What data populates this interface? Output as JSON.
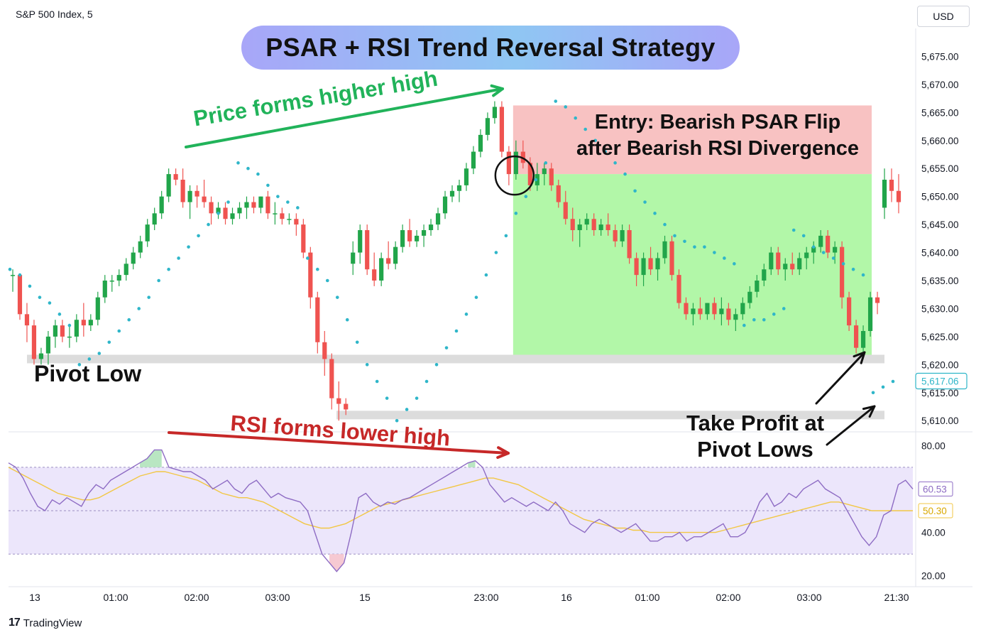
{
  "header": {
    "symbol": "S&P 500 Index, 5",
    "currency": "USD"
  },
  "title": "PSAR + RSI Trend Reversal Strategy",
  "annotations": {
    "price_higher_high": "Price forms higher high",
    "rsi_lower_high": "RSI forms lower high",
    "entry": "Entry: Bearish PSAR Flip after Bearish RSI Divergence",
    "pivot_low": "Pivot Low",
    "take_profit": "Take Profit at Pivot Lows"
  },
  "price_axis": {
    "labels": [
      "5,610.00",
      "5,615.00",
      "5,620.00",
      "5,625.00",
      "5,630.00",
      "5,635.00",
      "5,640.00",
      "5,645.00",
      "5,650.00",
      "5,655.00",
      "5,660.00",
      "5,665.00",
      "5,670.00",
      "5,675.00"
    ],
    "last_price": "5,617.06"
  },
  "rsi_axis": {
    "labels": [
      "80.00",
      "60.00",
      "40.00",
      "20.00"
    ],
    "rsi_value": "60.53",
    "ma_value": "50.30"
  },
  "time_axis": [
    "13",
    "01:00",
    "02:00",
    "03:00",
    "15",
    "23:00",
    "16",
    "01:00",
    "02:00",
    "03:00",
    "21:30"
  ],
  "footer": {
    "brand": "TradingView"
  },
  "colors": {
    "up": "#26a69a",
    "up_candle": "#21a54a",
    "down": "#ef5350",
    "psar": "#2fb6c9",
    "rsi": "#8e6cc4",
    "rsi_ma": "#f2c744",
    "stop_zone": "#f8c2c2",
    "profit_zone": "#b2f7a8",
    "pivot_line": "#dcdcdc"
  },
  "chart_data": [
    {
      "type": "candlestick",
      "title": "S&P 500 Index, 5",
      "ylim": [
        5608,
        5680
      ],
      "y_ticks": [
        5610,
        5615,
        5620,
        5625,
        5630,
        5635,
        5640,
        5645,
        5650,
        5655,
        5660,
        5665,
        5670,
        5675
      ],
      "last_price": 5617.06,
      "candles": [
        [
          5636,
          5637,
          5633,
          5636
        ],
        [
          5636,
          5636,
          5628,
          5629
        ],
        [
          5629,
          5631,
          5624,
          5627
        ],
        [
          5627,
          5628,
          5620,
          5621
        ],
        [
          5621,
          5623,
          5620,
          5622
        ],
        [
          5622,
          5626,
          5620,
          5625
        ],
        [
          5625,
          5628,
          5623,
          5627
        ],
        [
          5627,
          5628,
          5624,
          5625
        ],
        [
          5625,
          5627,
          5623,
          5625
        ],
        [
          5625,
          5629,
          5624,
          5628
        ],
        [
          5628,
          5631,
          5625,
          5627
        ],
        [
          5627,
          5629,
          5626,
          5628
        ],
        [
          5628,
          5633,
          5627,
          5632
        ],
        [
          5632,
          5636,
          5631,
          5635
        ],
        [
          5635,
          5636,
          5633,
          5635
        ],
        [
          5635,
          5637,
          5634,
          5636
        ],
        [
          5636,
          5639,
          5635,
          5638
        ],
        [
          5638,
          5641,
          5637,
          5640
        ],
        [
          5640,
          5643,
          5639,
          5642
        ],
        [
          5642,
          5646,
          5641,
          5645
        ],
        [
          5645,
          5648,
          5644,
          5647
        ],
        [
          5647,
          5651,
          5646,
          5650
        ],
        [
          5650,
          5655,
          5649,
          5654
        ],
        [
          5654,
          5655,
          5652,
          5653
        ],
        [
          5653,
          5655,
          5648,
          5649
        ],
        [
          5649,
          5652,
          5646,
          5651
        ],
        [
          5651,
          5652,
          5648,
          5650
        ],
        [
          5650,
          5653,
          5648,
          5649
        ],
        [
          5649,
          5650,
          5645,
          5647
        ],
        [
          5647,
          5649,
          5646,
          5648
        ],
        [
          5648,
          5649,
          5645,
          5646
        ],
        [
          5646,
          5648,
          5645,
          5647
        ],
        [
          5647,
          5649,
          5646,
          5648
        ],
        [
          5648,
          5650,
          5646,
          5649
        ],
        [
          5649,
          5650,
          5647,
          5648
        ],
        [
          5648,
          5650,
          5647,
          5650
        ],
        [
          5650,
          5651,
          5646,
          5647
        ],
        [
          5647,
          5649,
          5645,
          5647
        ],
        [
          5647,
          5648,
          5645,
          5646
        ],
        [
          5646,
          5647,
          5645,
          5646
        ],
        [
          5646,
          5647,
          5643,
          5645
        ],
        [
          5645,
          5646,
          5639,
          5640
        ],
        [
          5640,
          5641,
          5630,
          5632
        ],
        [
          5632,
          5633,
          5622,
          5624
        ],
        [
          5624,
          5626,
          5618,
          5621
        ],
        [
          5621,
          5622,
          5612,
          5614
        ],
        [
          5614,
          5617,
          5610,
          5613
        ],
        [
          5613,
          5614,
          5611,
          5612
        ],
        [
          5638,
          5642,
          5636,
          5640
        ],
        [
          5640,
          5645,
          5638,
          5644
        ],
        [
          5644,
          5645,
          5636,
          5637
        ],
        [
          5637,
          5640,
          5634,
          5635
        ],
        [
          5635,
          5640,
          5634,
          5639
        ],
        [
          5639,
          5642,
          5637,
          5638
        ],
        [
          5638,
          5642,
          5637,
          5641
        ],
        [
          5641,
          5645,
          5640,
          5644
        ],
        [
          5644,
          5646,
          5641,
          5642
        ],
        [
          5642,
          5644,
          5641,
          5643
        ],
        [
          5643,
          5645,
          5641,
          5644
        ],
        [
          5644,
          5646,
          5643,
          5645
        ],
        [
          5645,
          5648,
          5644,
          5647
        ],
        [
          5647,
          5651,
          5646,
          5650
        ],
        [
          5650,
          5652,
          5649,
          5651
        ],
        [
          5651,
          5653,
          5649,
          5652
        ],
        [
          5652,
          5656,
          5651,
          5655
        ],
        [
          5655,
          5659,
          5654,
          5658
        ],
        [
          5658,
          5662,
          5657,
          5661
        ],
        [
          5661,
          5665,
          5660,
          5664
        ],
        [
          5664,
          5667,
          5663,
          5666
        ],
        [
          5666,
          5667,
          5657,
          5658
        ],
        [
          5658,
          5659,
          5652,
          5654
        ],
        [
          5654,
          5660,
          5653,
          5658
        ],
        [
          5658,
          5660,
          5655,
          5656
        ],
        [
          5656,
          5657,
          5651,
          5652
        ],
        [
          5652,
          5656,
          5651,
          5654
        ],
        [
          5654,
          5656,
          5652,
          5655
        ],
        [
          5655,
          5656,
          5651,
          5652
        ],
        [
          5652,
          5653,
          5648,
          5649
        ],
        [
          5649,
          5651,
          5645,
          5646
        ],
        [
          5646,
          5648,
          5642,
          5644
        ],
        [
          5644,
          5646,
          5641,
          5645
        ],
        [
          5645,
          5647,
          5644,
          5646
        ],
        [
          5646,
          5647,
          5643,
          5644
        ],
        [
          5644,
          5646,
          5643,
          5645
        ],
        [
          5645,
          5647,
          5643,
          5644
        ],
        [
          5644,
          5645,
          5641,
          5642
        ],
        [
          5642,
          5645,
          5641,
          5644
        ],
        [
          5644,
          5645,
          5638,
          5639
        ],
        [
          5639,
          5640,
          5634,
          5636
        ],
        [
          5636,
          5640,
          5634,
          5639
        ],
        [
          5639,
          5641,
          5636,
          5637
        ],
        [
          5637,
          5640,
          5635,
          5639
        ],
        [
          5639,
          5643,
          5638,
          5642
        ],
        [
          5642,
          5643,
          5635,
          5636
        ],
        [
          5636,
          5637,
          5630,
          5631
        ],
        [
          5631,
          5632,
          5628,
          5629
        ],
        [
          5629,
          5631,
          5627,
          5630
        ],
        [
          5630,
          5632,
          5628,
          5629
        ],
        [
          5629,
          5631,
          5628,
          5631
        ],
        [
          5631,
          5632,
          5628,
          5629
        ],
        [
          5629,
          5632,
          5627,
          5630
        ],
        [
          5630,
          5631,
          5627,
          5628
        ],
        [
          5628,
          5630,
          5626,
          5629
        ],
        [
          5629,
          5632,
          5628,
          5631
        ],
        [
          5631,
          5634,
          5630,
          5633
        ],
        [
          5633,
          5636,
          5632,
          5635
        ],
        [
          5635,
          5638,
          5634,
          5637
        ],
        [
          5637,
          5641,
          5636,
          5640
        ],
        [
          5640,
          5641,
          5636,
          5637
        ],
        [
          5637,
          5639,
          5635,
          5638
        ],
        [
          5638,
          5640,
          5636,
          5637
        ],
        [
          5637,
          5640,
          5636,
          5639
        ],
        [
          5639,
          5641,
          5637,
          5640
        ],
        [
          5640,
          5642,
          5638,
          5641
        ],
        [
          5641,
          5644,
          5640,
          5643
        ],
        [
          5643,
          5644,
          5639,
          5640
        ],
        [
          5640,
          5642,
          5638,
          5641
        ],
        [
          5641,
          5642,
          5630,
          5632
        ],
        [
          5632,
          5633,
          5626,
          5627
        ],
        [
          5627,
          5628,
          5622,
          5623
        ],
        [
          5623,
          5627,
          5621,
          5626
        ],
        [
          5626,
          5633,
          5625,
          5632
        ],
        [
          5632,
          5633,
          5629,
          5631
        ],
        [
          5648,
          5655,
          5646,
          5653
        ],
        [
          5653,
          5655,
          5649,
          5651
        ],
        [
          5651,
          5654,
          5647,
          5649
        ]
      ],
      "psar": [
        5637,
        5636,
        5634,
        5632,
        5631,
        5629,
        5627,
        5620,
        5621,
        5622,
        5624,
        5626,
        5628,
        5630,
        5632,
        5635,
        5637,
        5639,
        5641,
        5643,
        5645,
        5647,
        5649,
        5656,
        5655,
        5654,
        5652,
        5650,
        5649,
        5648,
        5639,
        5637,
        5635,
        5632,
        5628,
        5624,
        5620,
        5617,
        5614,
        5610,
        5612,
        5614,
        5617,
        5620,
        5623,
        5626,
        5629,
        5632,
        5636,
        5640,
        5643,
        5647,
        5650,
        5653,
        5656,
        5667,
        5666,
        5664,
        5662,
        5660,
        5658,
        5656,
        5654,
        5651,
        5649,
        5647,
        5645,
        5643,
        5642,
        5641,
        5641,
        5640,
        5639,
        5638,
        5627,
        5628,
        5628,
        5629,
        5630,
        5644,
        5643,
        5641,
        5640,
        5639,
        5638,
        5637,
        5636,
        5615,
        5616,
        5617
      ],
      "pivot_low_levels": [
        5621,
        5611
      ],
      "entry_level": 5654,
      "stop_level": 5666,
      "profit_level": 5621
    },
    {
      "type": "line",
      "title": "RSI",
      "ylim": [
        15,
        85
      ],
      "y_ticks": [
        20,
        40,
        60,
        80
      ],
      "band": [
        30,
        70
      ],
      "series": [
        {
          "values": [
            72,
            70,
            65,
            58,
            52,
            50,
            55,
            53,
            56,
            54,
            52,
            58,
            62,
            60,
            64,
            66,
            68,
            70,
            72,
            74,
            78,
            78,
            70,
            69,
            68,
            68,
            66,
            64,
            60,
            62,
            64,
            60,
            58,
            62,
            64,
            60,
            56,
            58,
            56,
            55,
            54,
            50,
            40,
            30,
            26,
            22,
            26,
            40,
            56,
            58,
            54,
            52,
            54,
            53,
            55,
            56,
            58,
            60,
            62,
            64,
            66,
            68,
            70,
            72,
            73,
            70,
            62,
            58,
            54,
            56,
            54,
            52,
            54,
            52,
            50,
            54,
            50,
            44,
            42,
            40,
            44,
            46,
            44,
            42,
            40,
            42,
            44,
            40,
            36,
            36,
            38,
            38,
            40,
            36,
            38,
            38,
            40,
            42,
            44,
            38,
            38,
            40,
            46,
            54,
            58,
            52,
            54,
            58,
            56,
            60,
            62,
            64,
            60,
            58,
            56,
            50,
            44,
            38,
            34,
            38,
            48,
            50,
            62,
            64,
            60
          ]
        },
        {
          "values": [
            70,
            68,
            66,
            64,
            62,
            60,
            58,
            57,
            56,
            55,
            55,
            56,
            58,
            60,
            62,
            64,
            66,
            67,
            68,
            68,
            67,
            66,
            65,
            64,
            62,
            60,
            58,
            57,
            56,
            56,
            55,
            54,
            52,
            50,
            48,
            46,
            44,
            43,
            42,
            42,
            43,
            44,
            46,
            48,
            50,
            52,
            53,
            54,
            55,
            56,
            57,
            58,
            59,
            60,
            61,
            62,
            63,
            64,
            65,
            65,
            64,
            63,
            62,
            60,
            58,
            56,
            54,
            52,
            50,
            48,
            46,
            45,
            44,
            43,
            42,
            42,
            41,
            41,
            40,
            40,
            40,
            40,
            40,
            40,
            40,
            40,
            40,
            41,
            42,
            43,
            44,
            45,
            46,
            47,
            48,
            49,
            50,
            51,
            52,
            53,
            54,
            54,
            53,
            52,
            51,
            50,
            50,
            50,
            50,
            50,
            50
          ]
        }
      ]
    }
  ]
}
